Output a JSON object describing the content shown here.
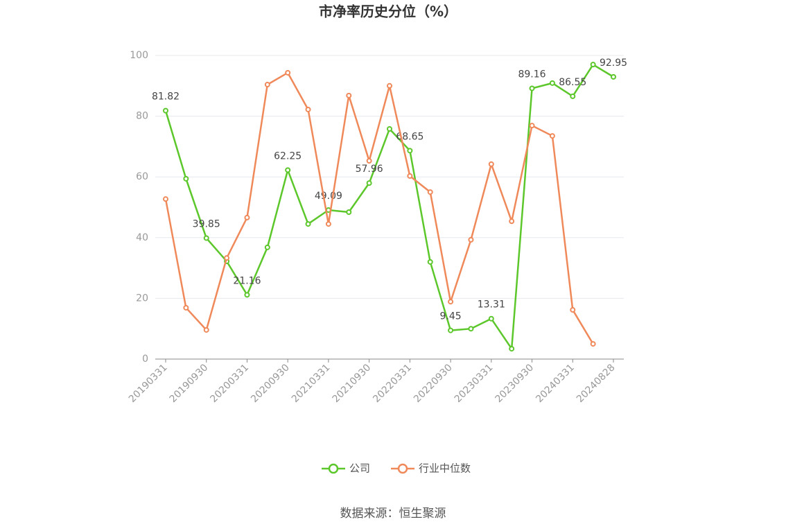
{
  "chart_data": {
    "type": "line",
    "title": "市净率历史分位（%）",
    "categories": [
      "20190331",
      null,
      "20190930",
      null,
      "20200331",
      null,
      "20200930",
      null,
      "20210331",
      null,
      "20210930",
      null,
      "20220331",
      null,
      "20220930",
      null,
      "20230331",
      null,
      "20230930",
      null,
      "20240331",
      null,
      "20240828"
    ],
    "series": [
      {
        "name": "公司",
        "color": "#5cc72a",
        "values": [
          81.82,
          59.4,
          39.85,
          32.2,
          21.16,
          36.8,
          62.25,
          44.5,
          49.09,
          48.4,
          57.96,
          75.8,
          68.65,
          32.0,
          9.45,
          10.0,
          13.31,
          3.4,
          89.16,
          90.9,
          86.55,
          97.0,
          92.95
        ],
        "value_labels": [
          "81.82",
          null,
          "39.85",
          null,
          "21.16",
          null,
          "62.25",
          null,
          "49.09",
          null,
          "57.96",
          null,
          "68.65",
          null,
          "9.45",
          null,
          "13.31",
          null,
          "89.16",
          null,
          "86.55",
          null,
          "92.95"
        ]
      },
      {
        "name": "行业中位数",
        "color": "#f0895a",
        "values": [
          52.7,
          16.9,
          9.6,
          33.3,
          46.6,
          90.4,
          94.3,
          82.2,
          44.5,
          86.8,
          65.3,
          90.0,
          60.3,
          55.0,
          18.9,
          39.3,
          64.2,
          45.4,
          76.9,
          73.5,
          16.2,
          5.0,
          null
        ]
      }
    ],
    "ylim": [
      0,
      100
    ],
    "yticks": [
      0,
      20,
      40,
      60,
      80,
      100
    ],
    "grid": true,
    "legend": "bottom",
    "source": "数据来源：恒生聚源"
  }
}
